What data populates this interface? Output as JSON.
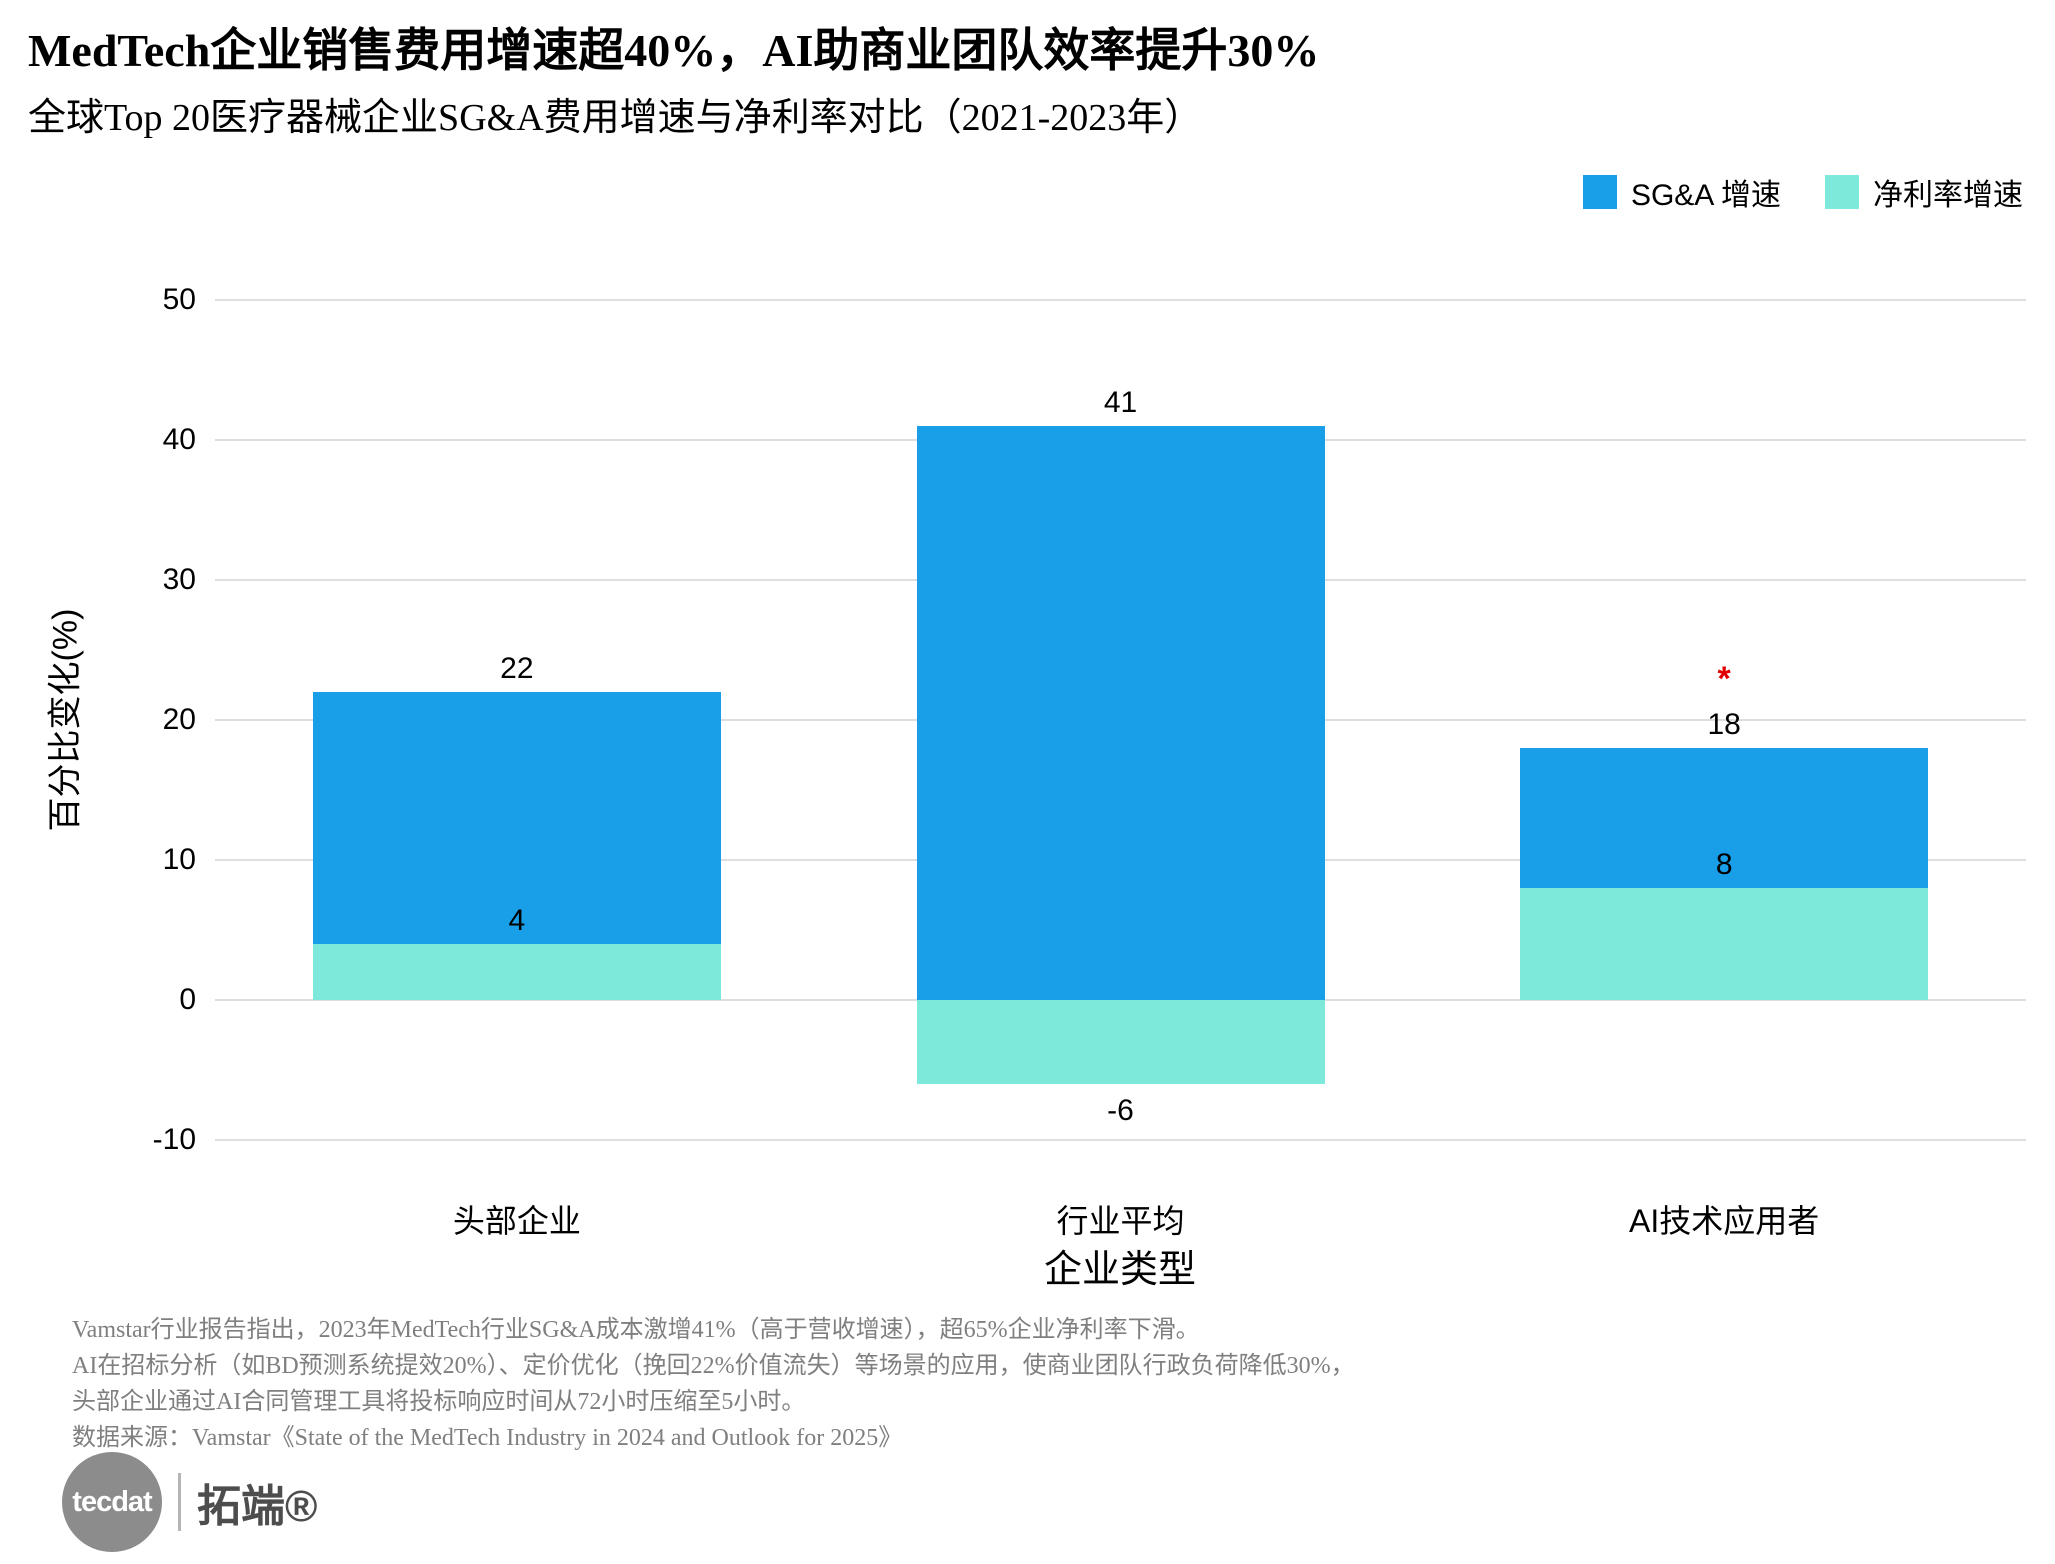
{
  "header": {
    "title": "MedTech企业销售费用增速超40%，AI助商业团队效率提升30%",
    "subtitle": "全球Top 20医疗器械企业SG&A费用增速与净利率对比（2021-2023年）"
  },
  "legend": {
    "items": [
      {
        "label": "SG&A 增速",
        "color": "#189FE8"
      },
      {
        "label": "净利率增速",
        "color": "#7DE9DA"
      }
    ]
  },
  "chart_data": {
    "type": "bar",
    "bar_mode": "overlay",
    "title": "MedTech企业销售费用增速超40%，AI助商业团队效率提升30%",
    "subtitle": "全球Top 20医疗器械企业SG&A费用增速与净利率对比（2021-2023年）",
    "categories": [
      "头部企业",
      "行业平均",
      "AI技术应用者"
    ],
    "series": [
      {
        "name": "SG&A 增速",
        "color": "#189FE8",
        "values": [
          22,
          41,
          18
        ]
      },
      {
        "name": "净利率增速",
        "color": "#7DE9DA",
        "values": [
          4,
          -6,
          8
        ]
      }
    ],
    "xlabel": "企业类型",
    "ylabel": "百分比变化(%)",
    "ylim": [
      -10,
      50
    ],
    "yticks": [
      50,
      40,
      30,
      20,
      10,
      0,
      -10
    ],
    "grid": "horizontal",
    "legend_position": "top-right",
    "annotations": [
      {
        "category": "AI技术应用者",
        "text": "*",
        "color": "#E00000"
      }
    ]
  },
  "footnotes": {
    "lines": [
      "Vamstar行业报告指出，2023年MedTech行业SG&A成本激增41%（高于营收增速），超65%企业净利率下滑。",
      "AI在招标分析（如BD预测系统提效20%）、定价优化（挽回22%价值流失）等场景的应用，使商业团队行政负荷降低30%，",
      "头部企业通过AI合同管理工具将投标响应时间从72小时压缩至5小时。"
    ],
    "source": "数据来源：Vamstar《State of the MedTech Industry in 2024 and Outlook for 2025》"
  },
  "logo": {
    "brand": "tecdat",
    "cjk": "拓端®"
  }
}
